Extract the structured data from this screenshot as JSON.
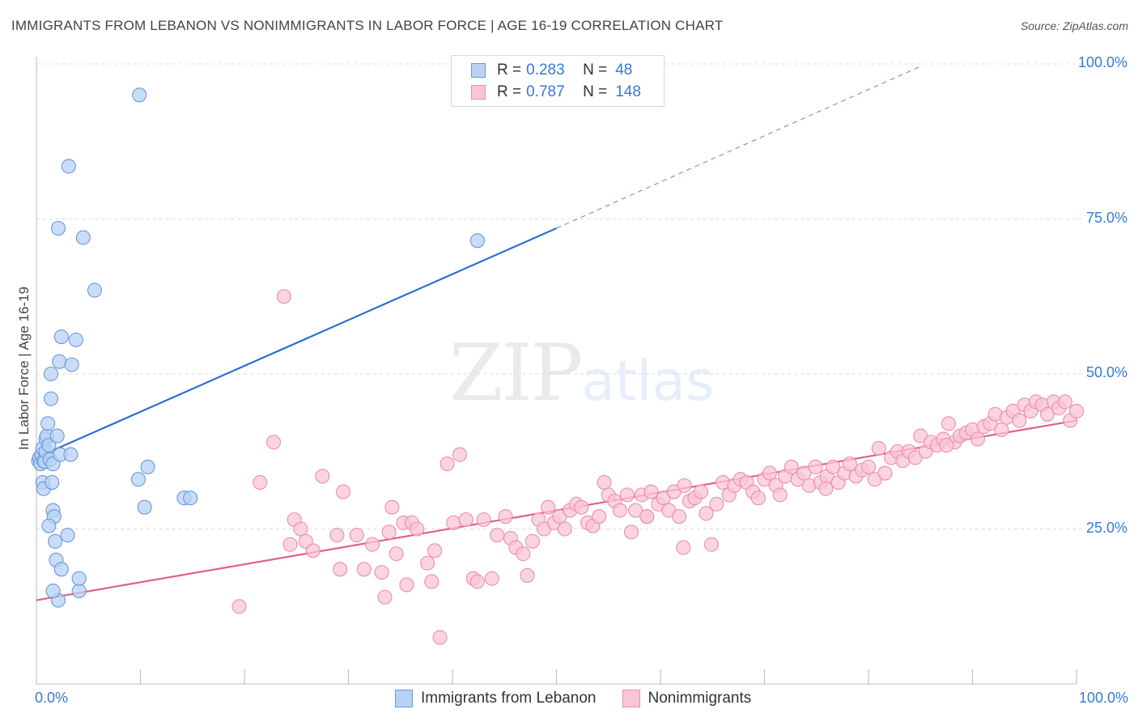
{
  "title": "IMMIGRANTS FROM LEBANON VS NONIMMIGRANTS IN LABOR FORCE | AGE 16-19 CORRELATION CHART",
  "source": "Source: ZipAtlas.com",
  "watermark": {
    "zip": "ZIP",
    "atlas": "atlas"
  },
  "legend_top": {
    "rows": [
      {
        "r_label": "R =",
        "r_value": "0.283",
        "n_label": "N =",
        "n_value": "48"
      },
      {
        "r_label": "R =",
        "r_value": "0.787",
        "n_label": "N =",
        "n_value": "148"
      }
    ]
  },
  "colors": {
    "blue_fill": "#b8d2f5",
    "blue_stroke": "#6b98d8",
    "blue_line": "#2f6fd0",
    "pink_fill": "#f9c6d6",
    "pink_stroke": "#e890ad",
    "pink_line": "#e0608f",
    "grid": "#dddddd",
    "tick_text": "#3a78d4"
  },
  "chart_data": {
    "type": "scatter",
    "xlabel": "",
    "ylabel": "In Labor Force | Age 16-19",
    "xlim": [
      0,
      100
    ],
    "ylim": [
      0,
      105
    ],
    "x_tick_labels": [
      {
        "value": 0,
        "label": "0.0%"
      },
      {
        "value": 100,
        "label": "100.0%"
      }
    ],
    "y_tick_labels": [
      {
        "value": 25,
        "label": "25.0%"
      },
      {
        "value": 50,
        "label": "50.0%"
      },
      {
        "value": 75,
        "label": "75.0%"
      },
      {
        "value": 100,
        "label": "100.0%"
      }
    ],
    "grid": "horizontal dashed",
    "series": [
      {
        "name": "Immigrants from Lebanon",
        "trend": {
          "x0": 0,
          "y0": 36.5,
          "x1": 50,
          "y1": 73.5,
          "dashed_to": 85,
          "dashed_y": 99.6
        },
        "points": [
          [
            0.2,
            36
          ],
          [
            0.3,
            36.5
          ],
          [
            0.4,
            35.5
          ],
          [
            0.5,
            37
          ],
          [
            0.6,
            38
          ],
          [
            0.7,
            36
          ],
          [
            0.8,
            35.8
          ],
          [
            0.9,
            37.5
          ],
          [
            0.6,
            32.5
          ],
          [
            0.7,
            31.5
          ],
          [
            0.9,
            39.5
          ],
          [
            1.0,
            40
          ],
          [
            1.1,
            42
          ],
          [
            1.2,
            38.5
          ],
          [
            1.3,
            36.2
          ],
          [
            1.5,
            32.5
          ],
          [
            1.4,
            46
          ],
          [
            1.4,
            50
          ],
          [
            1.6,
            35.5
          ],
          [
            1.6,
            28
          ],
          [
            1.7,
            27
          ],
          [
            1.8,
            23
          ],
          [
            1.9,
            20
          ],
          [
            2.1,
            13.5
          ],
          [
            2.0,
            40
          ],
          [
            2.1,
            73.5
          ],
          [
            2.2,
            52
          ],
          [
            2.4,
            56
          ],
          [
            2.3,
            37
          ],
          [
            2.4,
            18.5
          ],
          [
            1.6,
            15
          ],
          [
            1.2,
            25.5
          ],
          [
            3.1,
            83.5
          ],
          [
            3.3,
            37
          ],
          [
            3.4,
            51.5
          ],
          [
            3.0,
            24
          ],
          [
            3.8,
            55.5
          ],
          [
            4.1,
            15
          ],
          [
            4.1,
            17
          ],
          [
            4.5,
            72
          ],
          [
            5.6,
            63.5
          ],
          [
            9.9,
            95
          ],
          [
            9.8,
            33
          ],
          [
            10.4,
            28.5
          ],
          [
            10.7,
            35
          ],
          [
            14.2,
            30
          ],
          [
            14.8,
            30
          ],
          [
            42.4,
            71.5
          ]
        ]
      },
      {
        "name": "Nonimmigrants",
        "trend": {
          "x0": 0,
          "y0": 13.5,
          "x1": 100,
          "y1": 42.5
        },
        "points": [
          [
            19.5,
            12.5
          ],
          [
            21.5,
            32.5
          ],
          [
            22.8,
            39
          ],
          [
            23.8,
            62.5
          ],
          [
            24.4,
            22.5
          ],
          [
            24.8,
            26.5
          ],
          [
            25.4,
            25
          ],
          [
            25.9,
            23
          ],
          [
            26.6,
            21.5
          ],
          [
            27.5,
            33.5
          ],
          [
            28.9,
            24
          ],
          [
            29.2,
            18.5
          ],
          [
            29.5,
            31
          ],
          [
            30.8,
            24
          ],
          [
            31.5,
            18.5
          ],
          [
            32.3,
            22.5
          ],
          [
            33.2,
            18
          ],
          [
            33.5,
            14
          ],
          [
            33.9,
            24.5
          ],
          [
            34.2,
            28.5
          ],
          [
            34.6,
            21
          ],
          [
            35.3,
            26
          ],
          [
            35.6,
            16
          ],
          [
            36.1,
            26
          ],
          [
            36.6,
            25
          ],
          [
            37.6,
            19.5
          ],
          [
            38.0,
            16.5
          ],
          [
            38.3,
            21.5
          ],
          [
            38.8,
            7.5
          ],
          [
            39.5,
            35.5
          ],
          [
            40.1,
            26
          ],
          [
            40.7,
            37
          ],
          [
            41.3,
            26.5
          ],
          [
            42.0,
            17
          ],
          [
            42.4,
            16.5
          ],
          [
            43.0,
            26.5
          ],
          [
            43.8,
            17
          ],
          [
            44.3,
            24
          ],
          [
            45.1,
            27
          ],
          [
            45.6,
            23.5
          ],
          [
            46.1,
            22
          ],
          [
            46.8,
            21
          ],
          [
            47.2,
            17.5
          ],
          [
            47.7,
            23
          ],
          [
            48.3,
            26.5
          ],
          [
            48.8,
            25
          ],
          [
            49.2,
            28.5
          ],
          [
            49.8,
            26
          ],
          [
            50.3,
            27
          ],
          [
            50.8,
            25
          ],
          [
            51.3,
            28
          ],
          [
            51.9,
            29
          ],
          [
            52.4,
            28.5
          ],
          [
            53.0,
            26
          ],
          [
            53.5,
            25.5
          ],
          [
            54.1,
            27
          ],
          [
            54.6,
            32.5
          ],
          [
            55.0,
            30.5
          ],
          [
            55.6,
            29.5
          ],
          [
            56.1,
            28
          ],
          [
            56.8,
            30.5
          ],
          [
            57.2,
            24.5
          ],
          [
            57.6,
            28
          ],
          [
            58.2,
            30.5
          ],
          [
            58.7,
            27
          ],
          [
            59.1,
            31
          ],
          [
            59.8,
            29
          ],
          [
            60.3,
            30
          ],
          [
            60.8,
            28
          ],
          [
            61.3,
            31
          ],
          [
            61.8,
            27
          ],
          [
            62.3,
            32
          ],
          [
            62.8,
            29.5
          ],
          [
            63.3,
            30
          ],
          [
            63.9,
            31
          ],
          [
            64.4,
            27.5
          ],
          [
            64.9,
            22.5
          ],
          [
            65.4,
            29
          ],
          [
            66.0,
            32.5
          ],
          [
            66.6,
            30.5
          ],
          [
            67.1,
            32
          ],
          [
            67.7,
            33
          ],
          [
            68.3,
            32.5
          ],
          [
            68.9,
            31
          ],
          [
            69.4,
            30
          ],
          [
            70.0,
            33
          ],
          [
            70.5,
            34
          ],
          [
            71.1,
            32
          ],
          [
            71.5,
            30.5
          ],
          [
            72.0,
            33.5
          ],
          [
            72.6,
            35
          ],
          [
            73.2,
            33
          ],
          [
            73.8,
            34
          ],
          [
            74.3,
            32
          ],
          [
            74.9,
            35
          ],
          [
            75.4,
            32.5
          ],
          [
            76.0,
            33.5
          ],
          [
            76.6,
            35
          ],
          [
            77.1,
            32.5
          ],
          [
            77.7,
            34
          ],
          [
            78.2,
            35.5
          ],
          [
            78.8,
            33.5
          ],
          [
            79.4,
            34.5
          ],
          [
            80.0,
            35
          ],
          [
            80.6,
            33
          ],
          [
            81.0,
            38
          ],
          [
            81.6,
            34
          ],
          [
            82.2,
            36.5
          ],
          [
            82.8,
            37.5
          ],
          [
            83.3,
            36
          ],
          [
            83.9,
            37.5
          ],
          [
            84.5,
            36.5
          ],
          [
            85.0,
            40
          ],
          [
            85.5,
            37.5
          ],
          [
            86.0,
            39
          ],
          [
            86.6,
            38.5
          ],
          [
            87.2,
            39.5
          ],
          [
            87.7,
            42
          ],
          [
            88.3,
            39
          ],
          [
            88.8,
            40
          ],
          [
            89.4,
            40.5
          ],
          [
            90.0,
            41
          ],
          [
            90.5,
            39.5
          ],
          [
            91.1,
            41.5
          ],
          [
            91.7,
            42
          ],
          [
            92.2,
            43.5
          ],
          [
            92.8,
            41
          ],
          [
            93.3,
            43
          ],
          [
            93.9,
            44
          ],
          [
            94.5,
            42.5
          ],
          [
            95.0,
            45
          ],
          [
            95.6,
            44
          ],
          [
            96.1,
            45.5
          ],
          [
            96.7,
            45
          ],
          [
            97.2,
            43.5
          ],
          [
            97.8,
            45.5
          ],
          [
            98.3,
            44.5
          ],
          [
            98.9,
            45.5
          ],
          [
            99.4,
            42.5
          ],
          [
            100,
            44
          ],
          [
            62.2,
            22
          ],
          [
            75.9,
            31.5
          ],
          [
            58.7,
            27
          ],
          [
            87.5,
            38.5
          ]
        ]
      }
    ]
  }
}
